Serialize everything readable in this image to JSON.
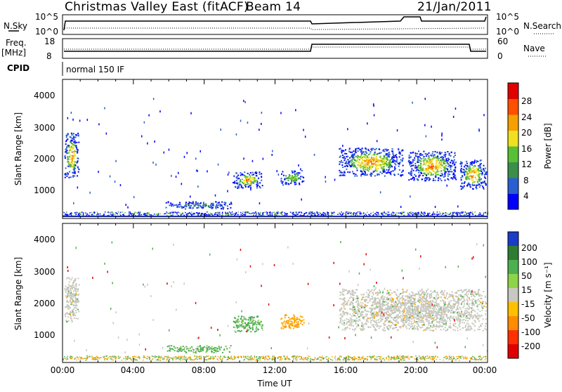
{
  "header": {
    "title": "Christmas Valley East (fitACF)",
    "beam": "Beam 14",
    "date": "21/Jan/2011"
  },
  "strips": {
    "nsky": {
      "label": "N.Sky",
      "ticks": [
        "10^5",
        "10^0"
      ]
    },
    "nsearch": {
      "label": "N.Search",
      "ticks": [
        "10^5",
        "10^0"
      ]
    },
    "freq": {
      "label": "Freq.",
      "unit": "[MHz]",
      "ticks": [
        "18",
        "8"
      ]
    },
    "nave": {
      "label": "Nave",
      "ticks": [
        "60",
        "0"
      ]
    },
    "cpid": {
      "label": "CPID",
      "value": "normal 150 IF"
    }
  },
  "time_axis": {
    "label": "Time UT",
    "ticks": [
      "00:00",
      "04:00",
      "08:00",
      "12:00",
      "16:00",
      "20:00",
      "00:00"
    ]
  },
  "panels": [
    {
      "ylabel": "Slant Range [km]",
      "yticks": [
        "4000",
        "3000",
        "2000",
        "1000"
      ],
      "colorbar": {
        "title": "Power [dB]",
        "labels": [
          "28",
          "24",
          "20",
          "16",
          "12",
          "8",
          "4"
        ],
        "colors": [
          "#0000ff",
          "#2a5fd0",
          "#3b8f4a",
          "#58c035",
          "#f0e020",
          "#f5a000",
          "#ff5000",
          "#e00000"
        ]
      }
    },
    {
      "ylabel": "Slant Range [km]",
      "yticks": [
        "4000",
        "3000",
        "2000",
        "1000"
      ],
      "colorbar": {
        "title": "Velocity [m s⁻¹]",
        "labels": [
          "200",
          "100",
          "50",
          "15",
          "-15",
          "-50",
          "-100",
          "-200"
        ],
        "colors": [
          "#1a3cc8",
          "#2e7d32",
          "#4caf50",
          "#8ed34a",
          "#c8c8c0",
          "#ffc000",
          "#ff8c00",
          "#ff3000",
          "#e00000"
        ]
      }
    }
  ],
  "chart_data": {
    "type": "heatmap",
    "title": "Christmas Valley East (fitACF)",
    "x_unit": "hours UT",
    "xlim": [
      0,
      24
    ],
    "ylim": [
      0,
      4500
    ],
    "xlabel": "Time UT",
    "ylabel": "Slant Range [km]",
    "colors": {
      "low": "#0000ff",
      "mid": "#58c035",
      "high": "#ff5000",
      "peak": "#e00000",
      "ground_vel": "#c8c8c0",
      "vel_pos": "#4caf50",
      "vel_neg": "#ffa500"
    },
    "power_regions": [
      {
        "t0": 0.1,
        "t1": 0.9,
        "r0": 1300,
        "r1": 2800,
        "level": "high"
      },
      {
        "t0": 5.8,
        "t1": 9.5,
        "r0": 250,
        "r1": 500,
        "level": "low"
      },
      {
        "t0": 9.6,
        "t1": 11.3,
        "r0": 950,
        "r1": 1500,
        "level": "high"
      },
      {
        "t0": 12.3,
        "t1": 13.6,
        "r0": 1050,
        "r1": 1550,
        "level": "mid"
      },
      {
        "t0": 15.6,
        "t1": 19.2,
        "r0": 1350,
        "r1": 2300,
        "level": "high"
      },
      {
        "t0": 19.5,
        "t1": 22.2,
        "r0": 1200,
        "r1": 2200,
        "level": "high"
      },
      {
        "t0": 22.4,
        "t1": 23.9,
        "r0": 900,
        "r1": 1900,
        "level": "high"
      }
    ],
    "velocity_regions": [
      {
        "t0": 0.1,
        "t1": 0.9,
        "r0": 1300,
        "r1": 2800,
        "vel": "ground"
      },
      {
        "t0": 5.8,
        "t1": 9.5,
        "r0": 250,
        "r1": 500,
        "vel": "pos"
      },
      {
        "t0": 9.6,
        "t1": 11.3,
        "r0": 950,
        "r1": 1500,
        "vel": "pos"
      },
      {
        "t0": 12.3,
        "t1": 13.6,
        "r0": 1050,
        "r1": 1550,
        "vel": "neg"
      },
      {
        "t0": 15.6,
        "t1": 23.9,
        "r0": 1000,
        "r1": 2400,
        "vel": "ground"
      }
    ]
  }
}
